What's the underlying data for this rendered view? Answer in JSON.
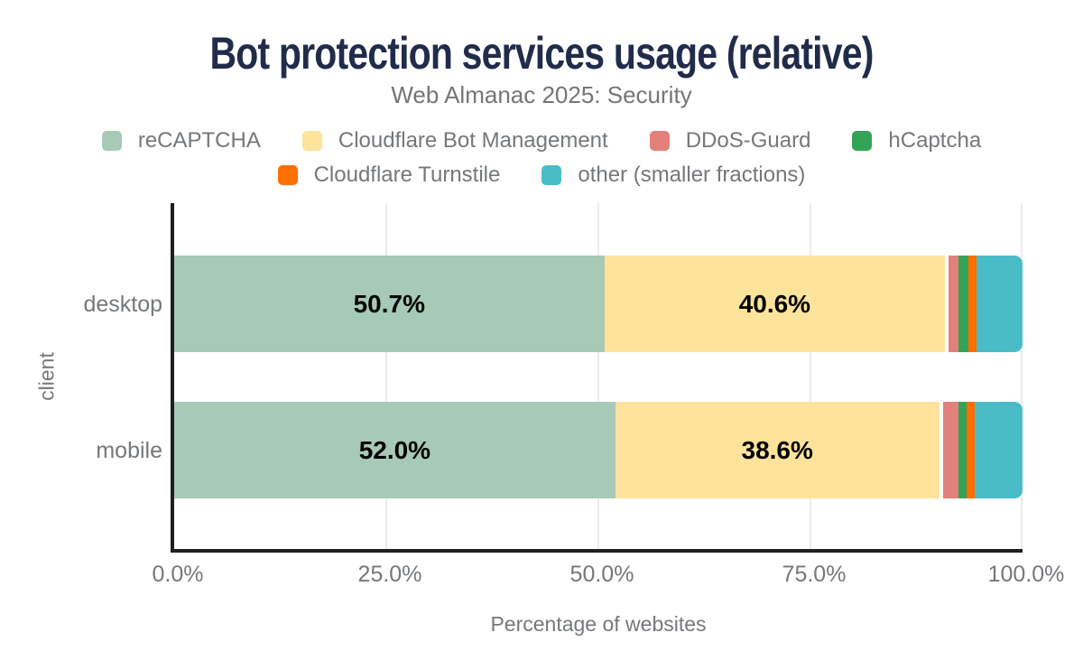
{
  "page": {
    "title": "Bot protection services usage (relative)",
    "subtitle": "Web Almanac 2025: Security"
  },
  "colors": {
    "title_text": "#212c4b",
    "muted_text": "#75787b",
    "subtitle_text": "#757575",
    "axis_line": "#1f1f1f",
    "gridline": "#ececec",
    "bar_value_label": "#000000",
    "background": "#ffffff"
  },
  "chart_data": {
    "type": "bar",
    "orientation": "horizontal",
    "stacked": true,
    "title": "Bot protection services usage (relative)",
    "subtitle": "Web Almanac 2025: Security",
    "xlabel": "Percentage of websites",
    "ylabel": "client",
    "categories": [
      "desktop",
      "mobile"
    ],
    "series": [
      {
        "name": "reCAPTCHA",
        "color": "#a6c9b8",
        "values": [
          50.7,
          52.0
        ],
        "labels": [
          "50.7%",
          "52.0%"
        ]
      },
      {
        "name": "Cloudflare Bot Management",
        "color": "#fde39c",
        "values": [
          40.6,
          38.6
        ],
        "labels": [
          "40.6%",
          "38.6%"
        ]
      },
      {
        "name": "DDoS-Guard",
        "color": "#e2817a",
        "values": [
          1.2,
          1.8
        ],
        "labels": [
          "",
          ""
        ]
      },
      {
        "name": "hCaptcha",
        "color": "#33a457",
        "values": [
          1.1,
          1.0
        ],
        "labels": [
          "",
          ""
        ]
      },
      {
        "name": "Cloudflare Turnstile",
        "color": "#ff6f00",
        "values": [
          1.0,
          1.0
        ],
        "labels": [
          "",
          ""
        ]
      },
      {
        "name": "other (smaller fractions)",
        "color": "#4abcc8",
        "values": [
          5.4,
          5.6
        ],
        "labels": [
          "",
          ""
        ]
      }
    ],
    "x_ticks": [
      "0.0%",
      "25.0%",
      "50.0%",
      "75.0%",
      "100.0%"
    ],
    "x_tick_values": [
      0,
      25,
      50,
      75,
      100
    ],
    "xlim": [
      0,
      100
    ],
    "grid": true,
    "legend_position": "top",
    "legend_rows": [
      [
        "reCAPTCHA",
        "Cloudflare Bot Management",
        "DDoS-Guard",
        "hCaptcha"
      ],
      [
        "Cloudflare Turnstile",
        "other (smaller fractions)"
      ]
    ]
  }
}
